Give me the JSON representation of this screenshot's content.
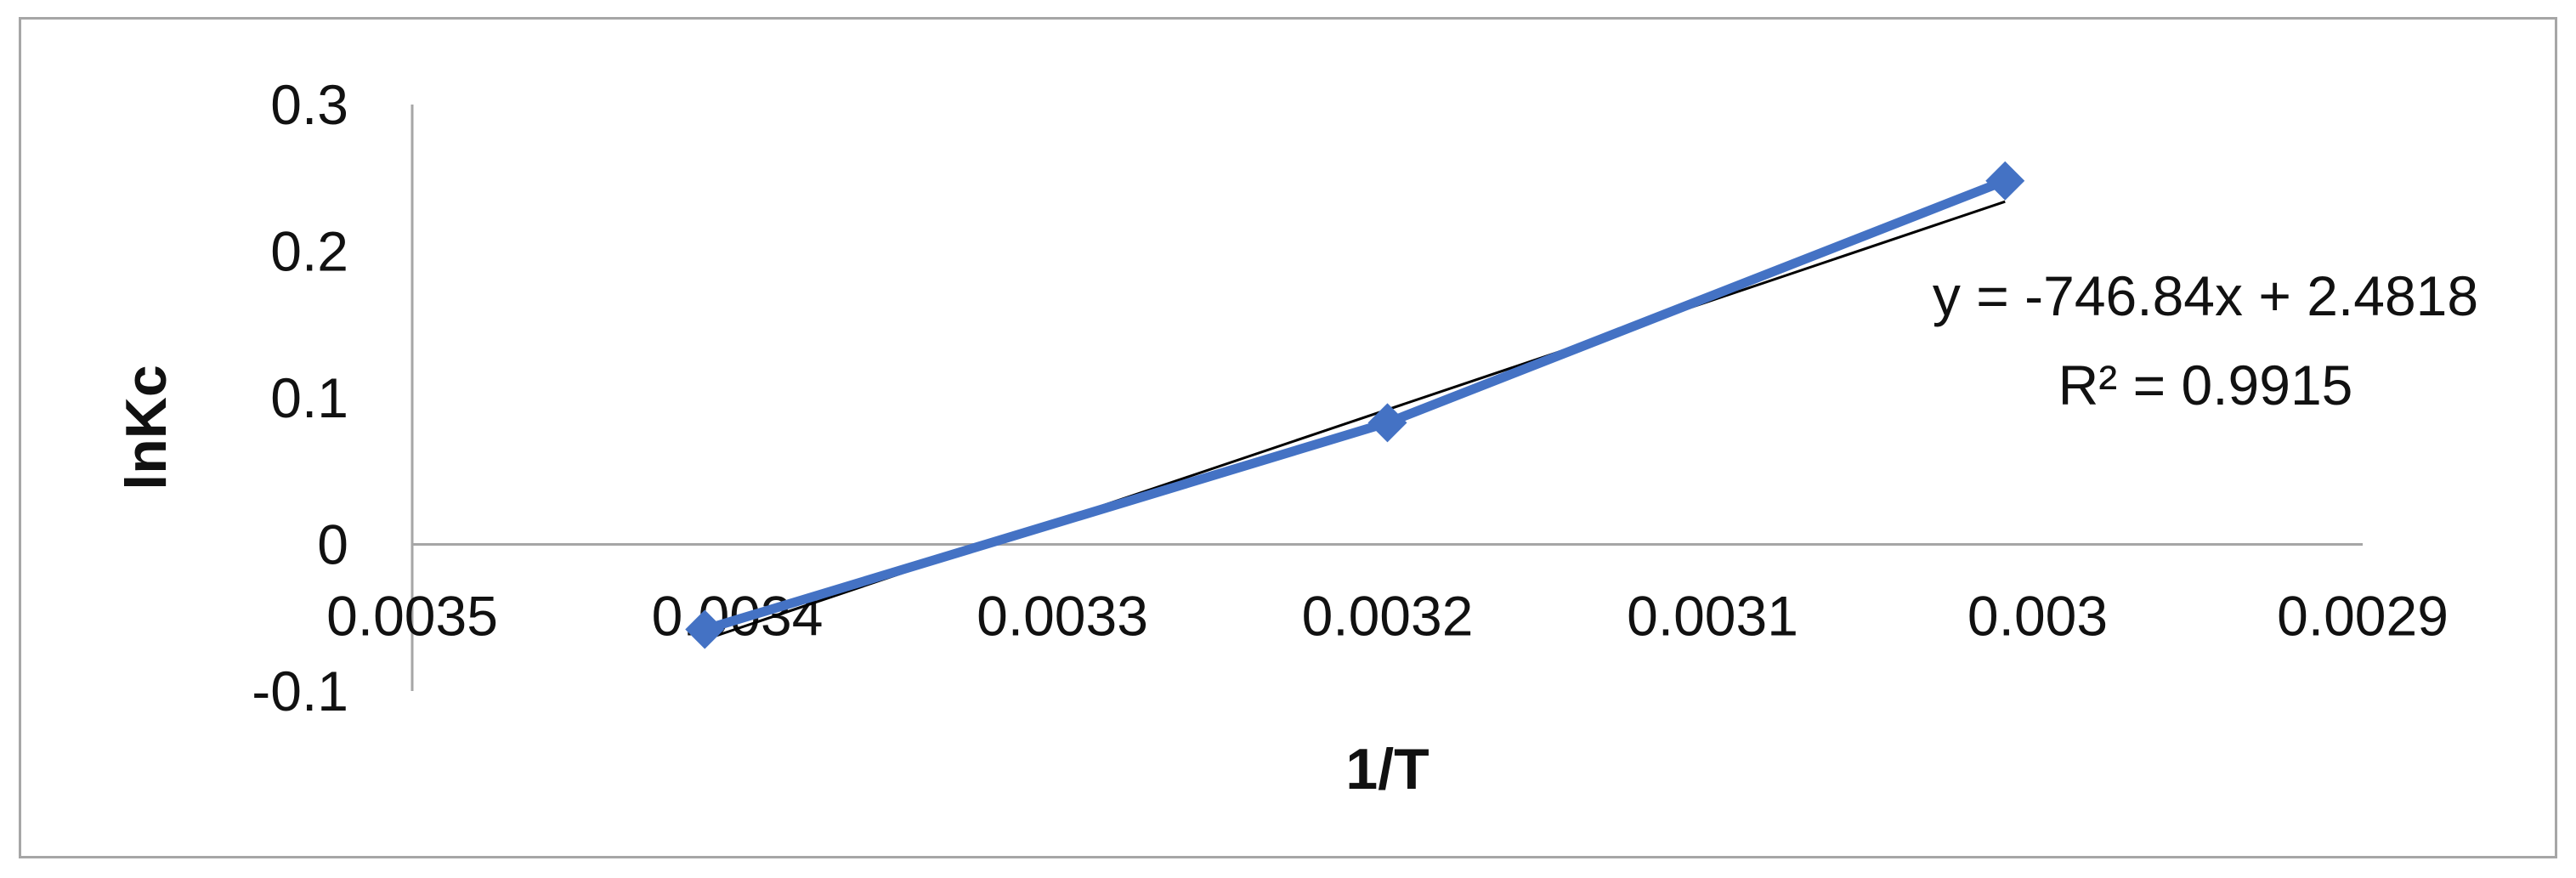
{
  "chart_data": {
    "type": "line",
    "xlabel": "1/T",
    "ylabel": "lnKc",
    "x_reversed": true,
    "xlim": [
      0.0029,
      0.0035
    ],
    "ylim": [
      -0.1,
      0.3
    ],
    "x_ticks": [
      "0.0035",
      "0.0034",
      "0.0033",
      "0.0032",
      "0.0031",
      "0.003",
      "0.0029"
    ],
    "y_ticks": [
      "0.3",
      "0.2",
      "0.1",
      "0",
      "-0.1"
    ],
    "series": [
      {
        "color": "#4472c4",
        "marker": "diamond",
        "x": [
          0.00341,
          0.0032,
          0.00301
        ],
        "y": [
          -0.058,
          0.083,
          0.248
        ]
      }
    ],
    "trendline": {
      "color": "#000000",
      "slope": -746.84,
      "intercept": 2.4818,
      "equation": "y = -746.84x + 2.4818",
      "r_squared": "R² = 0.9915"
    },
    "grid": false,
    "legend": "none"
  }
}
